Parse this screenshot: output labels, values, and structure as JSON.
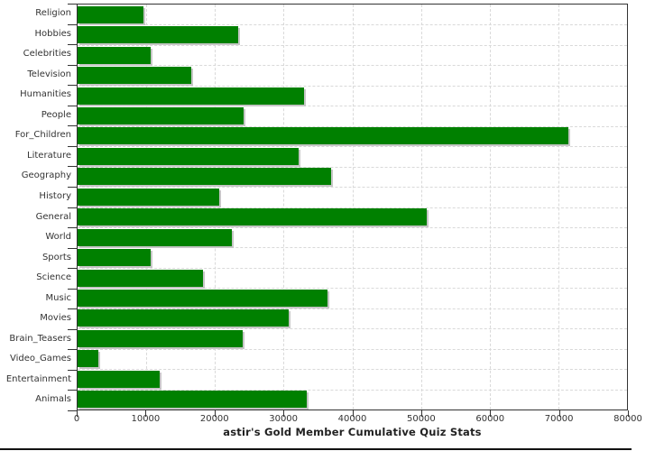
{
  "chart_data": {
    "type": "bar",
    "orientation": "horizontal",
    "title": "astir's Gold Member Cumulative Quiz Stats",
    "categories": [
      "Religion",
      "Hobbies",
      "Celebrities",
      "Television",
      "Humanities",
      "People",
      "For_Children",
      "Literature",
      "Geography",
      "History",
      "General",
      "World",
      "Sports",
      "Science",
      "Music",
      "Movies",
      "Brain_Teasers",
      "Video_Games",
      "Entertainment",
      "Animals"
    ],
    "values": [
      9600,
      23400,
      10700,
      16600,
      33000,
      24200,
      71400,
      32200,
      36900,
      20600,
      50800,
      22500,
      10700,
      18300,
      36400,
      30800,
      24000,
      3000,
      12000,
      33400
    ],
    "xlabel": "",
    "ylabel": "",
    "xlim": [
      0,
      80000
    ],
    "xticks": [
      0,
      10000,
      20000,
      30000,
      40000,
      50000,
      60000,
      70000,
      80000
    ],
    "xtick_labels": [
      "0",
      "10000",
      "20000",
      "30000",
      "40000",
      "50000",
      "60000",
      "70000",
      "80000"
    ],
    "grid": "dashed",
    "legend": "none"
  },
  "colors": {
    "bar": "#008000",
    "bar_shadow": "#c6c6c6",
    "grid": "#d9d9d9",
    "axis": "#333333",
    "text": "#333333",
    "title_text": "#222222",
    "bottom_rule": "#111111"
  }
}
